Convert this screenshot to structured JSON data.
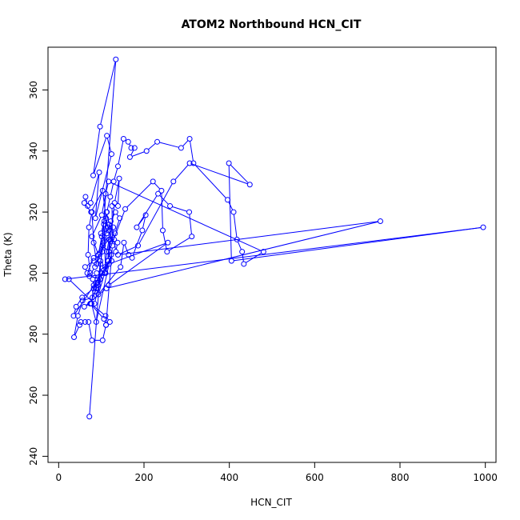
{
  "chart_data": {
    "type": "line",
    "title": "ATOM2 Northbound HCN_CIT",
    "xlabel": "HCN_CIT",
    "ylabel": "Theta (K)",
    "xlim": [
      -25,
      1025
    ],
    "ylim": [
      238,
      374
    ],
    "x_ticks": [
      0,
      200,
      400,
      600,
      800,
      1000
    ],
    "y_ticks": [
      240,
      260,
      280,
      300,
      320,
      340,
      360
    ],
    "x_tick_labels": [
      "0",
      "200",
      "400",
      "600",
      "800",
      "1000"
    ],
    "y_tick_labels": [
      "240",
      "260",
      "280",
      "300",
      "320",
      "340",
      "360"
    ],
    "grid": false,
    "legend": "none",
    "line_color": "#0000ff",
    "marker": "open-circle",
    "series": [
      {
        "x": [
          72,
          134,
          97,
          81,
          113,
          124,
          86,
          95,
          75,
          68,
          63,
          60,
          76,
          103,
          111,
          117,
          119,
          115,
          110,
          106,
          101,
          93,
          89,
          82,
          78,
          71,
          69,
          74,
          80,
          85,
          92,
          98,
          105,
          113,
          121,
          129,
          139,
          152,
          163,
          170,
          178,
          167,
          206,
          231,
          287,
          307,
          316,
          396,
          410,
          418,
          430,
          434,
          480,
          117,
          110,
          101,
          78,
          98,
          92,
          74,
          106,
          111,
          126,
          125,
          139,
          142,
          131,
          118,
          124,
          89,
          82,
          77,
          88,
          123,
          108,
          93,
          145,
          153,
          164,
          172,
          196,
          204,
          183,
          233,
          261,
          306,
          312,
          254,
          244,
          241,
          221,
          156,
          118,
          103,
          82,
          67,
          62,
          82,
          102,
          113,
          122,
          133,
          143,
          132,
          104,
          85,
          72,
          97,
          116,
          122,
          118,
          112,
          107,
          99,
          105,
          116,
          128,
          130,
          134,
          138,
          118,
          113,
          109,
          97,
          89,
          79,
          56,
          45,
          36,
          49,
          52,
          62,
          70,
          78,
          103,
          111,
          120,
          110,
          75,
          60,
          112,
          754,
          139,
          186,
          269,
          307,
          448,
          399,
          405,
          995,
          15,
          24,
          84,
          102,
          35,
          41,
          55,
          82,
          91,
          106,
          118,
          256,
          117
        ],
        "y": [
          253,
          370,
          348,
          332,
          345,
          339,
          318,
          333,
          323,
          322,
          325,
          323,
          320,
          327,
          318,
          314,
          311,
          304,
          300,
          316,
          312,
          306,
          303,
          310,
          320,
          315,
          306,
          300,
          298,
          294,
          297,
          303,
          310,
          320,
          325,
          330,
          335,
          344,
          343,
          341,
          341,
          338,
          340,
          343,
          341,
          344,
          336,
          324,
          320,
          311,
          307,
          303,
          307,
          330,
          326,
          319,
          312,
          304,
          296,
          290,
          285,
          283,
          309,
          322,
          322,
          331,
          323,
          307,
          304,
          300,
          296,
          290,
          284,
          306,
          300,
          293,
          302,
          310,
          306,
          305,
          314,
          319,
          315,
          326,
          322,
          320,
          312,
          307,
          314,
          327,
          330,
          321,
          307,
          309,
          305,
          300,
          302,
          304,
          307,
          313,
          317,
          320,
          318,
          313,
          309,
          302,
          299,
          298,
          304,
          311,
          316,
          320,
          317,
          313,
          311,
          315,
          315,
          311,
          307,
          310,
          311,
          307,
          302,
          298,
          295,
          292,
          291,
          286,
          279,
          283,
          284,
          284,
          284,
          278,
          278,
          283,
          284,
          286,
          290,
          289,
          295,
          317,
          306,
          309,
          330,
          336,
          329,
          336,
          304,
          315,
          298,
          298,
          290,
          300,
          286,
          289,
          292,
          295,
          298,
          301,
          303,
          310,
          296
        ]
      }
    ]
  }
}
